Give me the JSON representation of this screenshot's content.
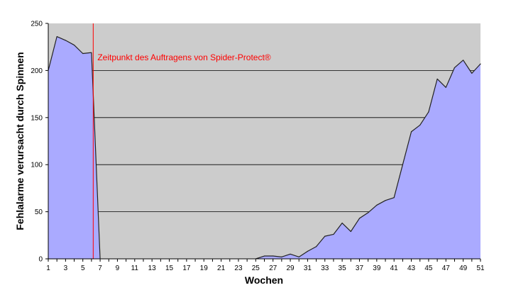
{
  "chart_data": {
    "type": "area",
    "title": "",
    "xlabel": "Wochen",
    "ylabel": "Fehlalarme verursacht durch Spinnen",
    "ylim": [
      0,
      250
    ],
    "xlim": [
      1,
      51
    ],
    "yticks": [
      0,
      50,
      100,
      150,
      200,
      250
    ],
    "xticks": [
      1,
      3,
      5,
      7,
      9,
      11,
      13,
      15,
      17,
      19,
      21,
      23,
      25,
      27,
      29,
      31,
      33,
      35,
      37,
      39,
      41,
      43,
      45,
      47,
      49,
      51
    ],
    "grid": "horizontal",
    "x": [
      1,
      2,
      3,
      4,
      5,
      6,
      7,
      8,
      9,
      10,
      11,
      12,
      13,
      14,
      15,
      16,
      17,
      18,
      19,
      20,
      21,
      22,
      23,
      24,
      25,
      26,
      27,
      28,
      29,
      30,
      31,
      32,
      33,
      34,
      35,
      36,
      37,
      38,
      39,
      40,
      41,
      42,
      43,
      44,
      45,
      46,
      47,
      48,
      49,
      50,
      51
    ],
    "values": [
      200,
      236,
      232,
      227,
      218,
      219,
      0,
      0,
      0,
      0,
      0,
      0,
      0,
      0,
      0,
      0,
      0,
      0,
      0,
      0,
      0,
      0,
      0,
      0,
      0,
      3,
      3,
      2,
      5,
      2,
      8,
      13,
      24,
      26,
      38,
      29,
      43,
      49,
      57,
      62,
      65,
      100,
      135,
      142,
      156,
      191,
      182,
      203,
      211,
      197,
      207
    ],
    "annotation": {
      "text": "Zeitpunkt des Auftragens von  Spider-Protect®",
      "x": 6.2
    },
    "colors": {
      "plot_background": "#cccccc",
      "fill": "#aaaaff",
      "line": "#222222",
      "annotation": "#ff0000"
    }
  }
}
